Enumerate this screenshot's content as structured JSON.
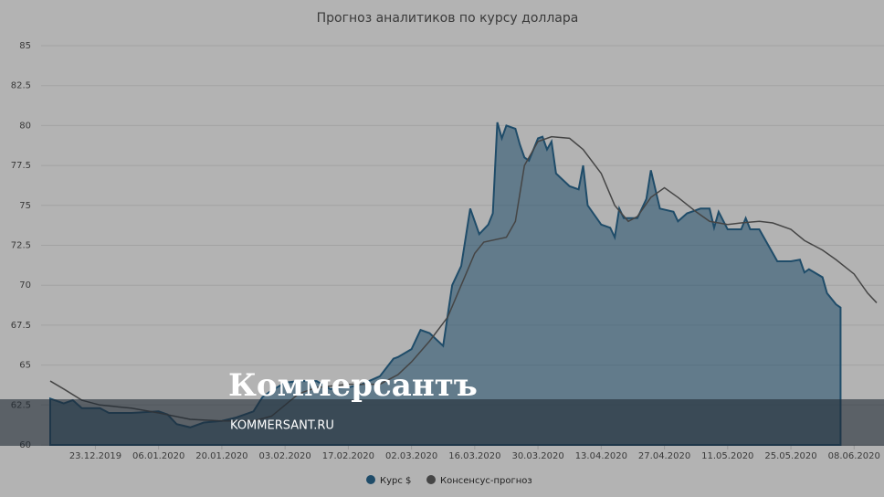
{
  "chart_data": {
    "type": "area-line",
    "title": "Прогноз аналитиков по курсу доллара",
    "xlim": [
      "13.12.2019",
      "13.06.2020"
    ],
    "xticks": [
      "23.12.2019",
      "06.01.2020",
      "20.01.2020",
      "03.02.2020",
      "17.02.2020",
      "02.03.2020",
      "16.03.2020",
      "30.03.2020",
      "13.04.2020",
      "27.04.2020",
      "11.05.2020",
      "25.05.2020",
      "08.06.2020"
    ],
    "ylim": [
      60,
      85
    ],
    "yticks": [
      60,
      62.5,
      65,
      67.5,
      70,
      72.5,
      75,
      77.5,
      80,
      82.5,
      85
    ],
    "grid": true,
    "series": [
      {
        "name": "Курс $",
        "color": "#1f4c69",
        "kind": "area",
        "x": [
          "13.12.2019",
          "16.12.2019",
          "18.12.2019",
          "20.12.2019",
          "24.12.2019",
          "26.12.2019",
          "31.12.2019",
          "06.01.2020",
          "08.01.2020",
          "10.01.2020",
          "13.01.2020",
          "16.01.2020",
          "20.01.2020",
          "23.01.2020",
          "27.01.2020",
          "29.01.2020",
          "31.01.2020",
          "03.02.2020",
          "06.02.2020",
          "10.02.2020",
          "13.02.2020",
          "17.02.2020",
          "20.02.2020",
          "24.02.2020",
          "27.02.2020",
          "28.02.2020",
          "02.03.2020",
          "04.03.2020",
          "06.03.2020",
          "09.03.2020",
          "11.03.2020",
          "13.03.2020",
          "15.03.2020",
          "17.03.2020",
          "19.03.2020",
          "20.03.2020",
          "21.03.2020",
          "22.03.2020",
          "23.03.2020",
          "25.03.2020",
          "26.03.2020",
          "27.03.2020",
          "28.03.2020",
          "30.03.2020",
          "31.03.2020",
          "01.04.2020",
          "02.04.2020",
          "03.04.2020",
          "06.04.2020",
          "08.04.2020",
          "09.04.2020",
          "10.04.2020",
          "13.04.2020",
          "15.04.2020",
          "16.04.2020",
          "17.04.2020",
          "18.04.2020",
          "21.04.2020",
          "23.04.2020",
          "24.04.2020",
          "25.04.2020",
          "26.04.2020",
          "29.04.2020",
          "30.04.2020",
          "02.05.2020",
          "05.05.2020",
          "07.05.2020",
          "08.05.2020",
          "09.05.2020",
          "11.05.2020",
          "14.05.2020",
          "15.05.2020",
          "16.05.2020",
          "18.05.2020",
          "19.05.2020",
          "21.05.2020",
          "22.05.2020",
          "25.05.2020",
          "27.05.2020",
          "28.05.2020",
          "29.05.2020",
          "01.06.2020",
          "02.06.2020",
          "04.06.2020",
          "05.06.2020"
        ],
        "values": [
          62.9,
          62.6,
          62.8,
          62.3,
          62.3,
          62.0,
          62.0,
          62.1,
          61.9,
          61.3,
          61.1,
          61.4,
          61.5,
          61.7,
          62.1,
          63.0,
          63.4,
          63.9,
          64.0,
          64.0,
          63.5,
          63.6,
          63.8,
          64.3,
          65.4,
          65.5,
          66.0,
          67.2,
          67.0,
          66.2,
          70.0,
          71.2,
          74.8,
          73.2,
          73.8,
          74.5,
          80.2,
          79.2,
          80.0,
          79.8,
          78.8,
          78.0,
          77.8,
          79.2,
          79.3,
          78.5,
          79.0,
          77.0,
          76.2,
          76.0,
          77.5,
          75.0,
          73.8,
          73.6,
          73.0,
          74.8,
          74.2,
          74.2,
          75.4,
          77.2,
          76.0,
          74.8,
          74.6,
          74.0,
          74.5,
          74.8,
          74.8,
          73.6,
          74.6,
          73.5,
          73.5,
          74.2,
          73.5,
          73.5,
          73.0,
          72.0,
          71.5,
          71.5,
          71.6,
          70.8,
          71.0,
          70.5,
          69.5,
          68.8,
          68.6
        ]
      },
      {
        "name": "Консенсус-прогноз",
        "color": "#454545",
        "kind": "line",
        "x": [
          "13.12.2019",
          "16.12.2019",
          "20.12.2019",
          "24.12.2019",
          "31.12.2019",
          "06.01.2020",
          "13.01.2020",
          "20.01.2020",
          "27.01.2020",
          "31.01.2020",
          "03.02.2020",
          "06.02.2020",
          "10.02.2020",
          "17.02.2020",
          "24.02.2020",
          "28.02.2020",
          "02.03.2020",
          "06.03.2020",
          "10.03.2020",
          "13.03.2020",
          "16.03.2020",
          "18.03.2020",
          "23.03.2020",
          "25.03.2020",
          "27.03.2020",
          "30.03.2020",
          "02.04.2020",
          "06.04.2020",
          "09.04.2020",
          "13.04.2020",
          "16.04.2020",
          "19.04.2020",
          "21.04.2020",
          "24.04.2020",
          "27.04.2020",
          "30.04.2020",
          "04.05.2020",
          "07.05.2020",
          "11.05.2020",
          "14.05.2020",
          "18.05.2020",
          "21.05.2020",
          "25.05.2020",
          "28.05.2020",
          "01.06.2020",
          "04.06.2020",
          "08.06.2020",
          "11.06.2020",
          "13.06.2020"
        ],
        "values": [
          64.0,
          63.5,
          62.8,
          62.5,
          62.3,
          62.0,
          61.6,
          61.5,
          61.5,
          61.8,
          62.5,
          63.2,
          63.6,
          63.8,
          63.8,
          64.4,
          65.2,
          66.5,
          68.0,
          70.0,
          72.0,
          72.7,
          73.0,
          74.0,
          77.5,
          79.0,
          79.3,
          79.2,
          78.5,
          77.0,
          75.0,
          74.0,
          74.3,
          75.5,
          76.1,
          75.5,
          74.6,
          74.0,
          73.8,
          73.9,
          74.0,
          73.9,
          73.5,
          72.8,
          72.2,
          71.6,
          70.7,
          69.5,
          68.9
        ]
      }
    ]
  },
  "watermark": {
    "logo": "Коммерсантъ",
    "url": "KOMMERSANT.RU"
  }
}
